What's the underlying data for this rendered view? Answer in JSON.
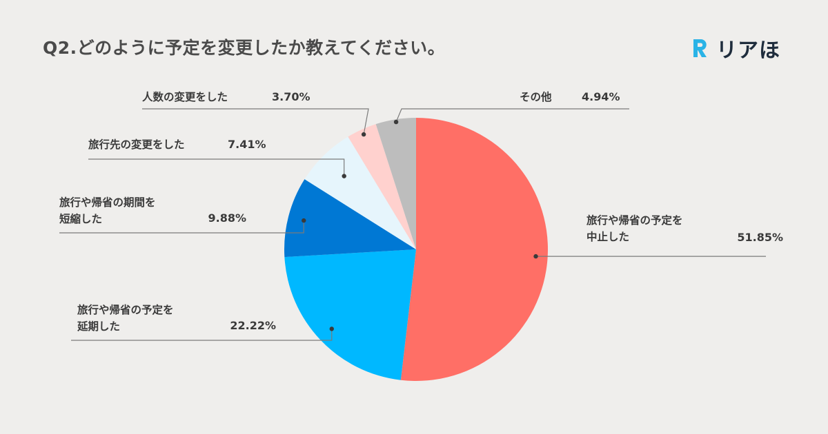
{
  "title": "Q2.どのように予定を変更したか教えてください。",
  "logo": {
    "text": "リアほ",
    "mark": "R"
  },
  "chart_data": {
    "type": "pie",
    "start_angle_deg": 0,
    "direction": "clockwise",
    "slices": [
      {
        "name_lines": [
          "旅行や帰省の予定を",
          "中止した"
        ],
        "value": 51.85,
        "label": "51.85%",
        "color": "#ff6f66"
      },
      {
        "name_lines": [
          "旅行や帰省の予定を",
          "延期した"
        ],
        "value": 22.22,
        "label": "22.22%",
        "color": "#00b8ff"
      },
      {
        "name_lines": [
          "旅行や帰省の期間を",
          "短縮した"
        ],
        "value": 9.88,
        "label": "9.88%",
        "color": "#0078d4"
      },
      {
        "name_lines": [
          "旅行先の変更をした"
        ],
        "value": 7.41,
        "label": "7.41%",
        "color": "#e6f5fc"
      },
      {
        "name_lines": [
          "人数の変更をした"
        ],
        "value": 3.7,
        "label": "3.70%",
        "color": "#ffd1ce"
      },
      {
        "name_lines": [
          "その他"
        ],
        "value": 4.94,
        "label": "4.94%",
        "color": "#bdbdbd"
      }
    ]
  }
}
